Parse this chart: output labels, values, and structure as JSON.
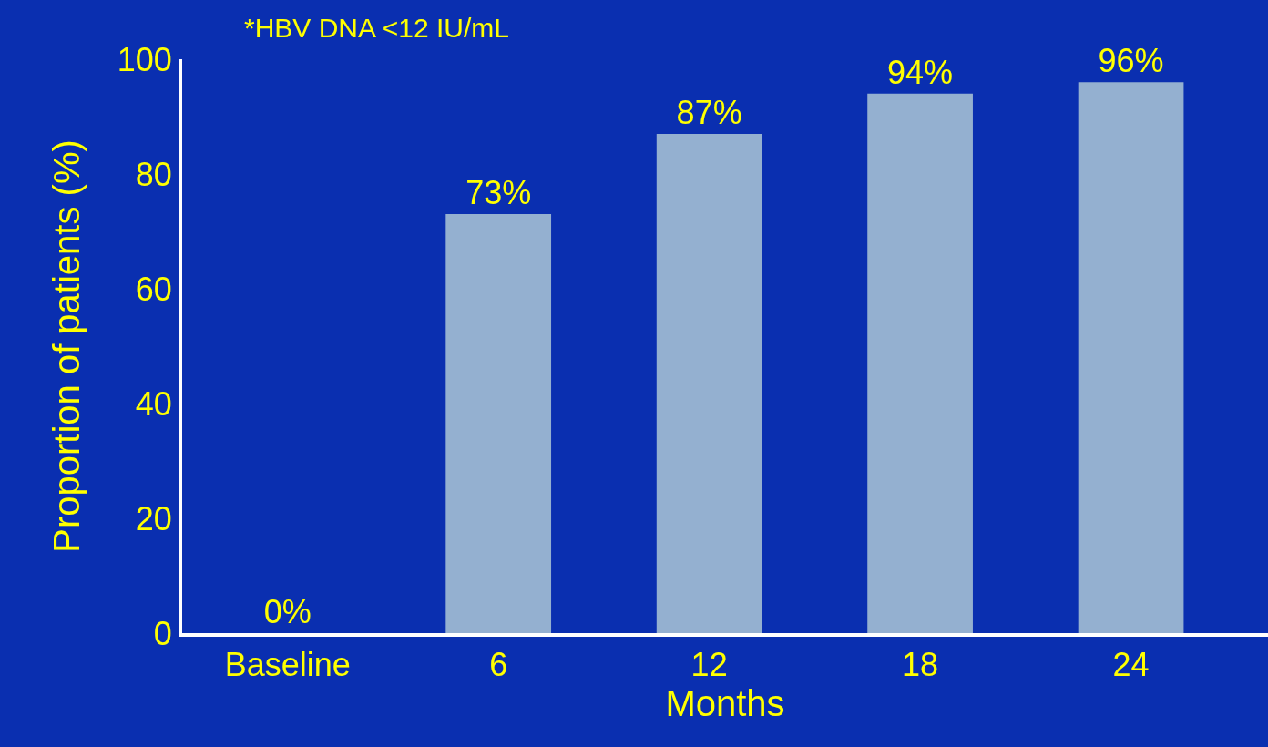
{
  "chart_data": {
    "type": "bar",
    "xlabel": "Months",
    "ylabel": "Proportion of patients (%)",
    "annotations": [
      "*HBV DNA <12 IU/mL"
    ],
    "categories": [
      "Baseline",
      "6",
      "12",
      "18",
      "24"
    ],
    "values": [
      0,
      73,
      87,
      94,
      96
    ],
    "value_labels": [
      "0%",
      "73%",
      "87%",
      "94%",
      "96%"
    ],
    "color": "#94b0d0",
    "ylim": [
      0,
      100
    ],
    "yticks": [
      0,
      20,
      40,
      60,
      80,
      100
    ],
    "grid": false,
    "legend": false
  }
}
